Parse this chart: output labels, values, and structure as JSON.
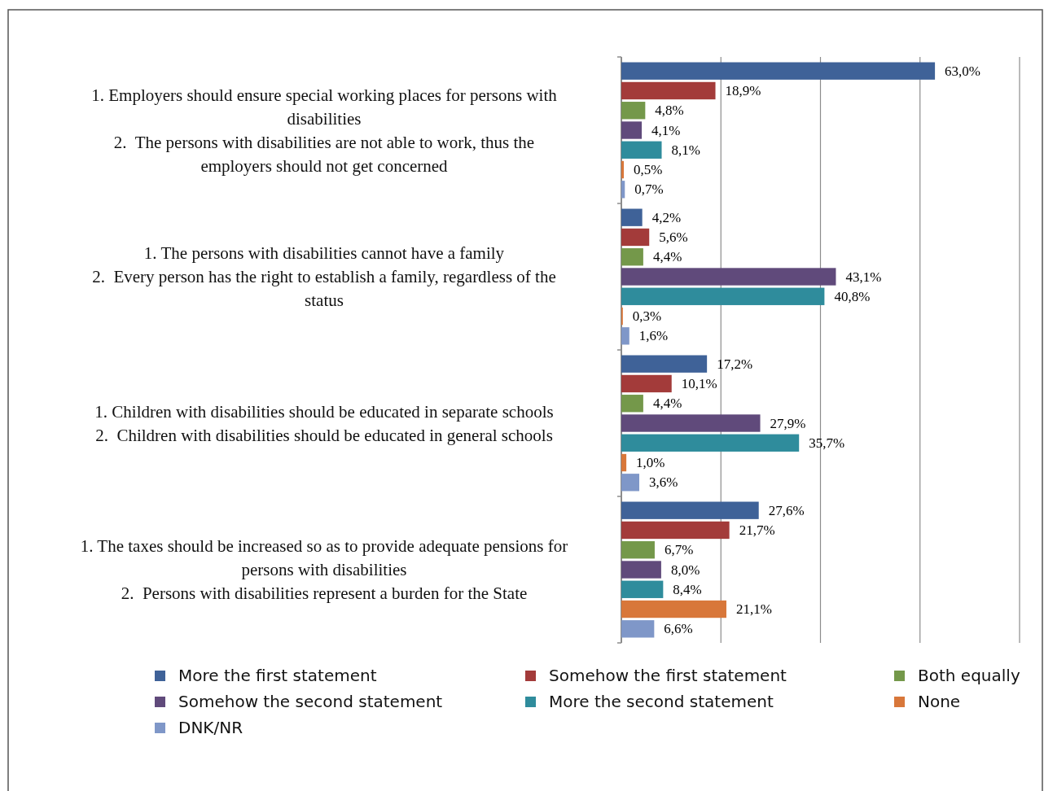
{
  "chart_data": {
    "type": "bar",
    "orientation": "horizontal",
    "categories": [
      "1. Employers should ensure special working places for persons with\ndisabilities\n2.  The persons with disabilities are not able to work, thus the\nemployers should not get concerned",
      "1. The persons with disabilities cannot have a family\n2.  Every person has the right to establish a family, regardless of the\nstatus",
      "1. Children with disabilities should be educated in separate schools\n2.  Children with disabilities should be educated in general schools",
      "1. The taxes should be increased so as to provide adequate pensions for\npersons with disabilities\n2.  Persons with disabilities represent a burden for the State"
    ],
    "series": [
      {
        "name": "More the first statement",
        "color": "#3f6298",
        "values": [
          63.0,
          4.2,
          17.2,
          27.6
        ],
        "value_labels": [
          "63,0%",
          "4,2%",
          "17,2%",
          "27,6%"
        ]
      },
      {
        "name": "Somehow the first statement",
        "color": "#a33b3a",
        "values": [
          18.9,
          5.6,
          10.1,
          21.7
        ],
        "value_labels": [
          "18,9%",
          "5,6%",
          "10,1%",
          "21,7%"
        ]
      },
      {
        "name": "Both equally",
        "color": "#74984a",
        "values": [
          4.8,
          4.4,
          4.4,
          6.7
        ],
        "value_labels": [
          "4,8%",
          "4,4%",
          "4,4%",
          "6,7%"
        ]
      },
      {
        "name": "Somehow the second statement",
        "color": "#604a7b",
        "values": [
          4.1,
          43.1,
          27.9,
          8.0
        ],
        "value_labels": [
          "4,1%",
          "43,1%",
          "27,9%",
          "8,0%"
        ]
      },
      {
        "name": "More the second statement",
        "color": "#2f8c9c",
        "values": [
          8.1,
          40.8,
          35.7,
          8.4
        ],
        "value_labels": [
          "8,1%",
          "40,8%",
          "35,7%",
          "8,4%"
        ]
      },
      {
        "name": "None",
        "color": "#d8773a",
        "values": [
          0.5,
          0.3,
          1.0,
          21.1
        ],
        "value_labels": [
          "0,5%",
          "0,3%",
          "1,0%",
          "21,1%"
        ]
      },
      {
        "name": "DNK/NR",
        "color": "#7f97c8",
        "values": [
          0.7,
          1.6,
          3.6,
          6.6
        ],
        "value_labels": [
          "0,7%",
          "1,6%",
          "3,6%",
          "6,6%"
        ]
      }
    ],
    "xlim": [
      0,
      80
    ],
    "xticks": [
      {
        "value": 0,
        "label": null
      },
      {
        "value": 20,
        "label": null
      },
      {
        "value": 40,
        "label": null
      },
      {
        "value": 60,
        "label": null
      },
      {
        "value": 80,
        "label": null
      }
    ],
    "grid": "x",
    "legend": "bottom",
    "tick_labels": "y"
  }
}
